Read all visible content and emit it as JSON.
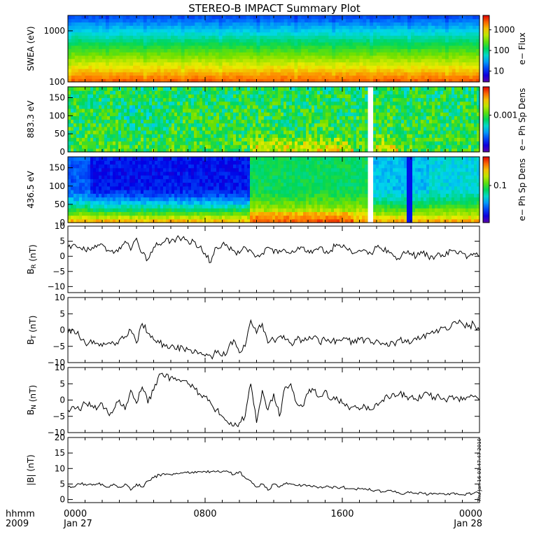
{
  "title": "STEREO-B IMPACT Summary Plot",
  "timestamp": "Thu Jan 16 01:47:47 2010",
  "footer": {
    "row1_label": "hhmm",
    "row2_label": "2009",
    "ticks": [
      {
        "t": 0,
        "top": "0000",
        "bottom": "Jan 27"
      },
      {
        "t": 480,
        "top": "0800",
        "bottom": ""
      },
      {
        "t": 960,
        "top": "1600",
        "bottom": ""
      },
      {
        "t": 1440,
        "top": "0000",
        "bottom": "Jan 28"
      }
    ]
  },
  "chart_data": [
    {
      "type": "heatmap",
      "panel": "swea",
      "ylabel": "SWEA (eV)",
      "yscale": "log",
      "ylim": [
        100,
        2000
      ],
      "yticks": [
        {
          "v": 100,
          "label": "100"
        },
        {
          "v": 1000,
          "label": "1000"
        }
      ],
      "colorbar_label": "e− Flux",
      "colorbar_scale": "log",
      "colorbar_ticks": [
        {
          "v": 10,
          "label": "10"
        },
        {
          "v": 100,
          "label": "100"
        },
        {
          "v": 1000,
          "label": "1000"
        }
      ],
      "colorbar_range": [
        3,
        5000
      ]
    },
    {
      "type": "heatmap",
      "panel": "pad883",
      "ylabel": "883.3 eV",
      "ylim": [
        0,
        180
      ],
      "yticks": [
        {
          "v": 0,
          "label": "0"
        },
        {
          "v": 50,
          "label": "50"
        },
        {
          "v": 100,
          "label": "100"
        },
        {
          "v": 150,
          "label": "150"
        }
      ],
      "colorbar_label": "e− Ph Sp Dens",
      "colorbar_ticks": [
        {
          "v": 0.001,
          "label": "0.001"
        }
      ],
      "data_gap_minutes": [
        1050,
        1068
      ]
    },
    {
      "type": "heatmap",
      "panel": "pad436",
      "ylabel": "436.5 eV",
      "ylim": [
        0,
        180
      ],
      "yticks": [
        {
          "v": 0,
          "label": "0"
        },
        {
          "v": 50,
          "label": "50"
        },
        {
          "v": 100,
          "label": "100"
        },
        {
          "v": 150,
          "label": "150"
        }
      ],
      "colorbar_label": "e− Ph Sp Dens",
      "colorbar_ticks": [
        {
          "v": 0.1,
          "label": "0.1"
        }
      ],
      "data_gap_minutes": [
        1050,
        1068
      ]
    },
    {
      "type": "line",
      "panel": "br",
      "ylabel_main": "B",
      "ylabel_sub": "R",
      "ylabel_unit": " (nT)",
      "ylim": [
        -12,
        10
      ],
      "yticks": [
        {
          "v": -10,
          "label": "−10"
        },
        {
          "v": -5,
          "label": "−5"
        },
        {
          "v": 0,
          "label": "0"
        },
        {
          "v": 5,
          "label": "5"
        },
        {
          "v": 10,
          "label": "10"
        }
      ],
      "x": [
        0,
        20,
        40,
        60,
        80,
        100,
        120,
        140,
        160,
        180,
        200,
        220,
        240,
        260,
        280,
        300,
        320,
        340,
        360,
        380,
        400,
        420,
        440,
        460,
        480,
        500,
        520,
        540,
        560,
        580,
        600,
        620,
        640,
        660,
        680,
        700,
        720,
        740,
        760,
        780,
        800,
        820,
        840,
        860,
        880,
        900,
        920,
        940,
        960,
        980,
        1000,
        1020,
        1040,
        1060,
        1080,
        1100,
        1120,
        1140,
        1160,
        1180,
        1200,
        1220,
        1240,
        1260,
        1280,
        1300,
        1320,
        1340,
        1360,
        1380,
        1400,
        1420,
        1440
      ],
      "values": [
        3,
        4,
        3,
        2,
        2,
        3,
        4,
        2,
        1,
        3,
        5,
        2,
        6,
        1,
        -1,
        3,
        4,
        5,
        5,
        6,
        6,
        5,
        5,
        3,
        1,
        -2,
        3,
        4,
        3,
        2,
        1,
        3,
        2,
        0,
        1,
        3,
        1,
        2,
        2,
        1,
        2,
        3,
        2,
        2,
        3,
        1,
        2,
        4,
        3,
        2,
        1,
        2,
        2,
        1,
        3,
        2,
        2,
        0,
        -1,
        1,
        1,
        0,
        1,
        0,
        -1,
        1,
        0,
        2,
        1,
        1,
        0,
        1,
        0
      ]
    },
    {
      "type": "line",
      "panel": "bt",
      "ylabel_main": "B",
      "ylabel_sub": "T",
      "ylabel_unit": " (nT)",
      "ylim": [
        -10,
        10
      ],
      "yticks": [
        {
          "v": -10,
          "label": "−10"
        },
        {
          "v": -5,
          "label": "−5"
        },
        {
          "v": 0,
          "label": "0"
        },
        {
          "v": 5,
          "label": "5"
        },
        {
          "v": 10,
          "label": "10"
        }
      ],
      "x": [
        0,
        20,
        40,
        60,
        80,
        100,
        120,
        140,
        160,
        180,
        200,
        220,
        240,
        260,
        280,
        300,
        320,
        340,
        360,
        380,
        400,
        420,
        440,
        460,
        480,
        500,
        520,
        540,
        560,
        580,
        600,
        620,
        640,
        660,
        680,
        700,
        720,
        740,
        760,
        780,
        800,
        820,
        840,
        860,
        880,
        900,
        920,
        940,
        960,
        980,
        1000,
        1020,
        1040,
        1060,
        1080,
        1100,
        1120,
        1140,
        1160,
        1180,
        1200,
        1220,
        1240,
        1260,
        1280,
        1300,
        1320,
        1340,
        1360,
        1380,
        1400,
        1420,
        1440
      ],
      "values": [
        -1,
        0,
        -2,
        -4,
        -3,
        -4,
        -5,
        -4,
        -4,
        -3,
        -2,
        0,
        -4,
        2,
        -1,
        -3,
        -4,
        -5,
        -5,
        -6,
        -5,
        -6,
        -7,
        -7,
        -8,
        -8,
        -7,
        -8,
        -6,
        -3,
        -7,
        -5,
        3,
        -1,
        2,
        -4,
        -3,
        -2,
        -3,
        -4,
        -3,
        -3,
        -3,
        -2,
        -4,
        -3,
        -4,
        -3,
        -3,
        -3,
        -4,
        -3,
        -3,
        -4,
        -3,
        -4,
        -5,
        -4,
        -3,
        -3,
        -4,
        -3,
        -2,
        -1,
        -1,
        0,
        1,
        1,
        2,
        2,
        1,
        2,
        0
      ]
    },
    {
      "type": "line",
      "panel": "bn",
      "ylabel_main": "B",
      "ylabel_sub": "N",
      "ylabel_unit": " (nT)",
      "ylim": [
        -10,
        10
      ],
      "yticks": [
        {
          "v": -10,
          "label": "−10"
        },
        {
          "v": -5,
          "label": "−5"
        },
        {
          "v": 0,
          "label": "0"
        },
        {
          "v": 5,
          "label": "5"
        },
        {
          "v": 10,
          "label": "10"
        }
      ],
      "x": [
        0,
        20,
        40,
        60,
        80,
        100,
        120,
        140,
        160,
        180,
        200,
        220,
        240,
        260,
        280,
        300,
        320,
        340,
        360,
        380,
        400,
        420,
        440,
        460,
        480,
        500,
        520,
        540,
        560,
        580,
        600,
        620,
        640,
        660,
        680,
        700,
        720,
        740,
        760,
        780,
        800,
        820,
        840,
        860,
        880,
        900,
        920,
        940,
        960,
        980,
        1000,
        1020,
        1040,
        1060,
        1080,
        1100,
        1120,
        1140,
        1160,
        1180,
        1200,
        1220,
        1240,
        1260,
        1280,
        1300,
        1320,
        1340,
        1360,
        1380,
        1400,
        1420,
        1440
      ],
      "values": [
        -3,
        -2,
        -3,
        -1,
        -2,
        -3,
        -1,
        -4,
        -3,
        0,
        -3,
        3,
        -1,
        4,
        -1,
        3,
        8,
        7,
        7,
        6,
        6,
        5,
        4,
        2,
        1,
        -1,
        -3,
        -5,
        -7,
        -8,
        -7,
        -5,
        5,
        -7,
        3,
        -3,
        2,
        -5,
        4,
        5,
        -1,
        -2,
        2,
        3,
        1,
        3,
        0,
        1,
        -1,
        -2,
        -2,
        -3,
        -2,
        -3,
        -1,
        0,
        1,
        2,
        2,
        1,
        1,
        0,
        1,
        2,
        1,
        1,
        0,
        1,
        1,
        0,
        1,
        1,
        0
      ]
    },
    {
      "type": "line",
      "panel": "bmag",
      "ylabel_main": "|B|",
      "ylabel_sub": "",
      "ylabel_unit": " (nT)",
      "ylim": [
        -1,
        20
      ],
      "yticks": [
        {
          "v": 0,
          "label": "0"
        },
        {
          "v": 5,
          "label": "5"
        },
        {
          "v": 10,
          "label": "10"
        },
        {
          "v": 15,
          "label": "15"
        },
        {
          "v": 20,
          "label": "20"
        }
      ],
      "x": [
        0,
        20,
        40,
        60,
        80,
        100,
        120,
        140,
        160,
        180,
        200,
        220,
        240,
        260,
        280,
        300,
        320,
        340,
        360,
        380,
        400,
        420,
        440,
        460,
        480,
        500,
        520,
        540,
        560,
        580,
        600,
        620,
        640,
        660,
        680,
        700,
        720,
        740,
        760,
        780,
        800,
        820,
        840,
        860,
        880,
        900,
        920,
        940,
        960,
        980,
        1000,
        1020,
        1040,
        1060,
        1080,
        1100,
        1120,
        1140,
        1160,
        1180,
        1200,
        1220,
        1240,
        1260,
        1280,
        1300,
        1320,
        1340,
        1360,
        1380,
        1400,
        1420,
        1440
      ],
      "values": [
        4,
        4,
        5,
        5,
        5,
        5,
        5,
        4,
        5,
        4,
        5,
        3,
        5,
        4,
        6,
        7,
        8,
        8,
        8,
        8.5,
        8.5,
        9,
        8.5,
        9,
        9,
        9,
        9,
        9,
        9,
        8,
        9,
        7,
        6,
        4,
        5,
        3,
        5,
        4,
        5,
        5,
        4.5,
        4.5,
        4.5,
        4.5,
        4,
        4,
        4,
        4,
        4,
        3.5,
        3.5,
        3.5,
        3.5,
        3,
        3,
        2.5,
        3,
        2.5,
        2,
        2,
        2.5,
        2,
        2,
        1.5,
        2,
        2,
        1.5,
        2,
        2,
        1.5,
        2,
        2,
        2
      ]
    }
  ]
}
